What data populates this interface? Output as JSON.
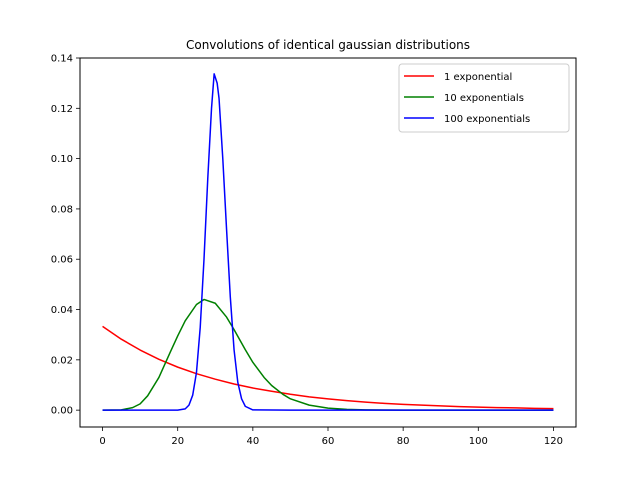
{
  "chart_data": {
    "type": "line",
    "title": "Convolutions of identical gaussian distributions",
    "xlabel": "",
    "ylabel": "",
    "xlim": [
      -6,
      126
    ],
    "ylim": [
      -0.0067,
      0.14
    ],
    "xticks": [
      0,
      20,
      40,
      60,
      80,
      100,
      120
    ],
    "xtick_labels": [
      "0",
      "20",
      "40",
      "60",
      "80",
      "100",
      "120"
    ],
    "yticks": [
      0.0,
      0.02,
      0.04,
      0.06,
      0.08,
      0.1,
      0.12,
      0.14
    ],
    "ytick_labels": [
      "0.00",
      "0.02",
      "0.04",
      "0.06",
      "0.08",
      "0.10",
      "0.12",
      "0.14"
    ],
    "grid": false,
    "legend_position": "top-right",
    "series": [
      {
        "name": "1 exponential",
        "color": "#ff0000",
        "x": [
          0,
          5,
          10,
          15,
          20,
          25,
          30,
          35,
          40,
          45,
          50,
          55,
          60,
          65,
          70,
          75,
          80,
          85,
          90,
          95,
          100,
          105,
          110,
          115,
          120
        ],
        "values": [
          0.0333,
          0.0282,
          0.0239,
          0.0202,
          0.0171,
          0.0145,
          0.0123,
          0.0104,
          0.0088,
          0.0075,
          0.0063,
          0.0053,
          0.0045,
          0.0038,
          0.0032,
          0.0027,
          0.0023,
          0.002,
          0.0017,
          0.0014,
          0.0012,
          0.001,
          0.0009,
          0.0007,
          0.0006
        ]
      },
      {
        "name": "10 exponentials",
        "color": "#008000",
        "x": [
          0,
          5,
          8,
          10,
          12,
          15,
          18,
          20,
          22,
          25,
          27,
          30,
          33,
          35,
          38,
          40,
          43,
          45,
          48,
          50,
          55,
          60,
          65,
          70,
          80,
          90,
          100,
          110,
          120
        ],
        "values": [
          0.0,
          0.0001,
          0.001,
          0.0025,
          0.0057,
          0.013,
          0.023,
          0.0295,
          0.0355,
          0.042,
          0.044,
          0.0425,
          0.037,
          0.032,
          0.024,
          0.019,
          0.013,
          0.0098,
          0.0063,
          0.0045,
          0.002,
          0.0008,
          0.0003,
          0.0001,
          0.0,
          0.0,
          0.0,
          0.0,
          0.0
        ]
      },
      {
        "name": "100 exponentials",
        "color": "#0000ff",
        "x": [
          0,
          10,
          20,
          22,
          23,
          24,
          25,
          26,
          27,
          28,
          29,
          29.7,
          30.5,
          31,
          32,
          33,
          34,
          35,
          36,
          37,
          38,
          40,
          50,
          60,
          80,
          100,
          120
        ],
        "values": [
          0.0,
          0.0,
          0.0,
          0.0005,
          0.002,
          0.006,
          0.015,
          0.033,
          0.06,
          0.092,
          0.12,
          0.1337,
          0.13,
          0.124,
          0.1,
          0.072,
          0.045,
          0.024,
          0.011,
          0.0045,
          0.0015,
          0.0001,
          0.0,
          0.0,
          0.0,
          0.0,
          0.0
        ]
      }
    ]
  }
}
